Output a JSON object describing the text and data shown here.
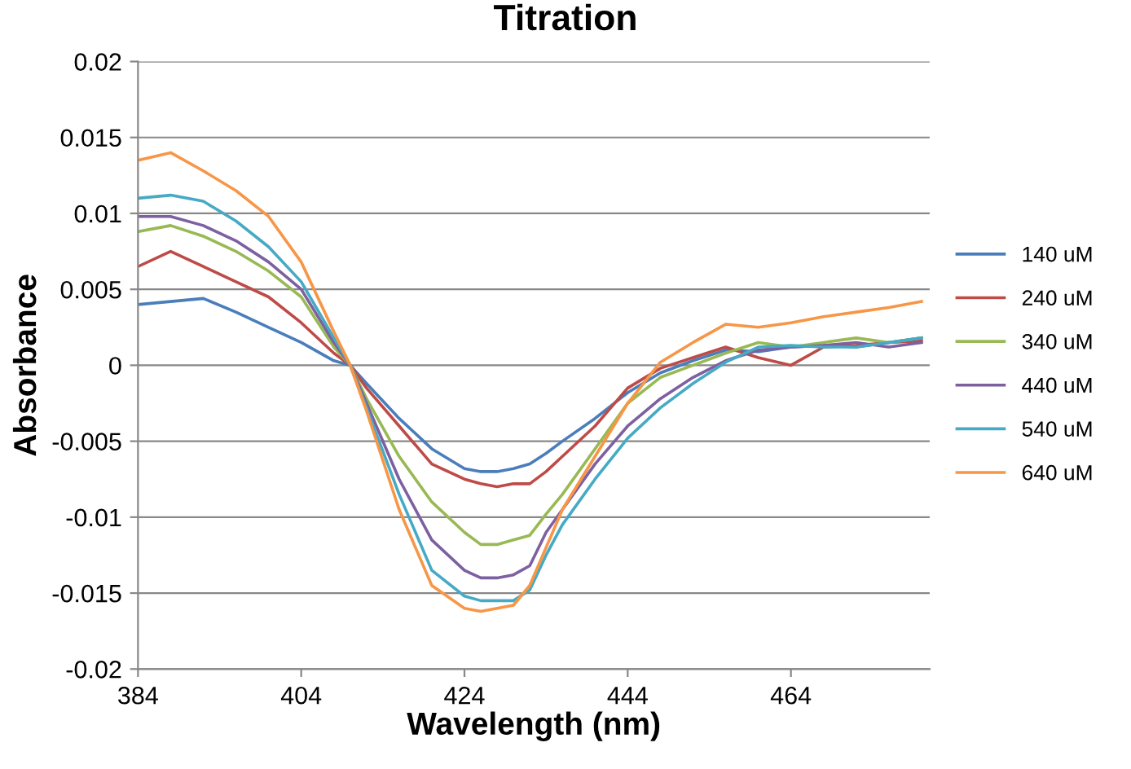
{
  "chart_data": {
    "type": "line",
    "title": "Titration",
    "xlabel": "Wavelength (nm)",
    "ylabel": "Absorbance",
    "x": [
      384,
      388,
      392,
      396,
      400,
      404,
      408,
      410,
      412,
      416,
      420,
      424,
      426,
      428,
      430,
      432,
      434,
      436,
      440,
      444,
      448,
      452,
      456,
      460,
      464,
      468,
      472,
      476,
      480
    ],
    "xlim": [
      384,
      481
    ],
    "xticks": [
      384,
      404,
      424,
      444,
      464
    ],
    "ylim": [
      -0.02,
      0.02
    ],
    "yticks": [
      -0.02,
      -0.015,
      -0.01,
      -0.005,
      0,
      0.005,
      0.01,
      0.015,
      0.02
    ],
    "grid": "y",
    "legend": "right",
    "marker": "none",
    "line_style": "solid",
    "series": [
      {
        "name": "140 uM",
        "color": "#4a7ebb",
        "values": [
          0.004,
          0.0042,
          0.0044,
          0.0035,
          0.0025,
          0.0015,
          0.0003,
          0.0,
          -0.0012,
          -0.0035,
          -0.0055,
          -0.0068,
          -0.007,
          -0.007,
          -0.0068,
          -0.0065,
          -0.0058,
          -0.005,
          -0.0035,
          -0.0018,
          -0.0005,
          0.0003,
          0.001,
          0.0009,
          0.0012,
          0.0013,
          0.0012,
          0.0015,
          0.0018
        ]
      },
      {
        "name": "240 uM",
        "color": "#be4b48",
        "values": [
          0.0065,
          0.0075,
          0.0065,
          0.0055,
          0.0045,
          0.0028,
          0.0008,
          0.0,
          -0.0015,
          -0.004,
          -0.0065,
          -0.0075,
          -0.0078,
          -0.008,
          -0.0078,
          -0.0078,
          -0.007,
          -0.006,
          -0.004,
          -0.0015,
          -0.0002,
          0.0005,
          0.0012,
          0.0005,
          0.0,
          0.0012,
          0.0013,
          0.0015,
          0.0016
        ]
      },
      {
        "name": "340 uM",
        "color": "#98b954",
        "values": [
          0.0088,
          0.0092,
          0.0085,
          0.0075,
          0.0062,
          0.0045,
          0.0012,
          0.0,
          -0.0022,
          -0.006,
          -0.009,
          -0.011,
          -0.0118,
          -0.0118,
          -0.0115,
          -0.0112,
          -0.0098,
          -0.0085,
          -0.0055,
          -0.0025,
          -0.0008,
          0.0,
          0.0008,
          0.0015,
          0.0012,
          0.0015,
          0.0018,
          0.0015,
          0.0018
        ]
      },
      {
        "name": "440 uM",
        "color": "#7d60a0",
        "values": [
          0.0098,
          0.0098,
          0.0092,
          0.0082,
          0.0068,
          0.005,
          0.0015,
          0.0,
          -0.0025,
          -0.0075,
          -0.0115,
          -0.0135,
          -0.014,
          -0.014,
          -0.0138,
          -0.0132,
          -0.011,
          -0.0095,
          -0.0065,
          -0.004,
          -0.0022,
          -0.0008,
          0.0003,
          0.001,
          0.0012,
          0.0013,
          0.0015,
          0.0012,
          0.0015
        ]
      },
      {
        "name": "540 uM",
        "color": "#46aac5",
        "values": [
          0.011,
          0.0112,
          0.0108,
          0.0095,
          0.0078,
          0.0055,
          0.0018,
          0.0,
          -0.0028,
          -0.0085,
          -0.0135,
          -0.0152,
          -0.0155,
          -0.0155,
          -0.0155,
          -0.0148,
          -0.0125,
          -0.0105,
          -0.0075,
          -0.0048,
          -0.0028,
          -0.0012,
          0.0002,
          0.0012,
          0.0013,
          0.0012,
          0.0012,
          0.0015,
          0.0018
        ]
      },
      {
        "name": "640 uM",
        "color": "#f79646",
        "values": [
          0.0135,
          0.014,
          0.0128,
          0.0115,
          0.0098,
          0.0068,
          0.0022,
          0.0,
          -0.003,
          -0.0095,
          -0.0145,
          -0.016,
          -0.0162,
          -0.016,
          -0.0158,
          -0.0145,
          -0.012,
          -0.0095,
          -0.006,
          -0.0025,
          0.0002,
          0.0015,
          0.0027,
          0.0025,
          0.0028,
          0.0032,
          0.0035,
          0.0038,
          0.0042
        ]
      }
    ]
  }
}
